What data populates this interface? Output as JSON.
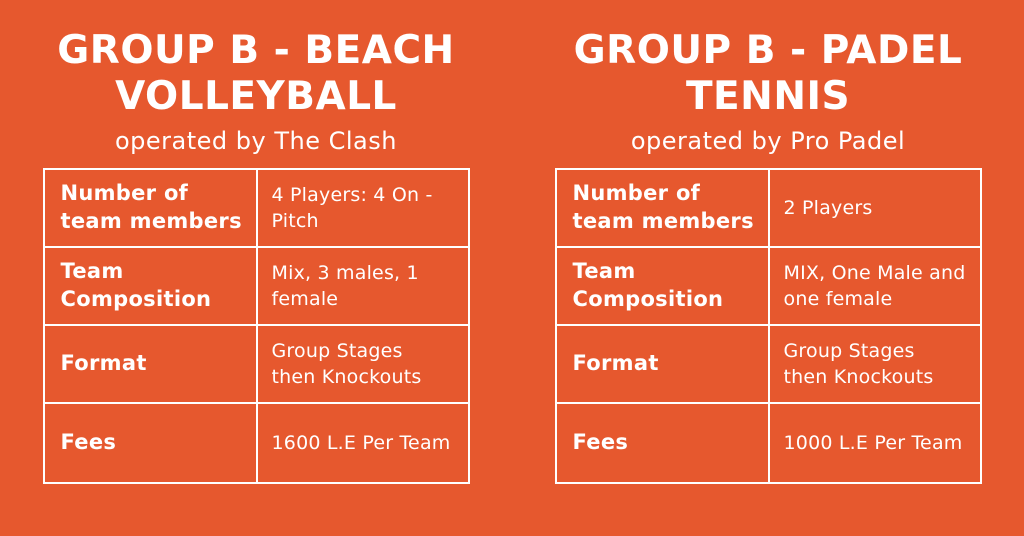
{
  "page": {
    "background_color": "#E6582E",
    "text_color": "#FFFFFF",
    "border_color": "#FFFFFF"
  },
  "tables": [
    {
      "title": "GROUP B - BEACH\nVOLLEYBALL",
      "subtitle": "operated by The Clash",
      "rows": [
        {
          "label": "Number of\nteam members",
          "value": "4 Players: 4 On -\nPitch"
        },
        {
          "label": "Team\nComposition",
          "value": "Mix, 3 males, 1\nfemale"
        },
        {
          "label": "Format",
          "value": "Group Stages\nthen Knockouts"
        },
        {
          "label": "Fees",
          "value": "1600 L.E Per Team"
        }
      ]
    },
    {
      "title": "GROUP B - PADEL\nTENNIS",
      "subtitle": "operated by Pro Padel",
      "rows": [
        {
          "label": "Number of\nteam members",
          "value": "2 Players"
        },
        {
          "label": "Team\nComposition",
          "value": "MIX, One Male and\none female"
        },
        {
          "label": "Format",
          "value": "Group Stages\nthen Knockouts"
        },
        {
          "label": "Fees",
          "value": "1000 L.E Per Team"
        }
      ]
    }
  ]
}
